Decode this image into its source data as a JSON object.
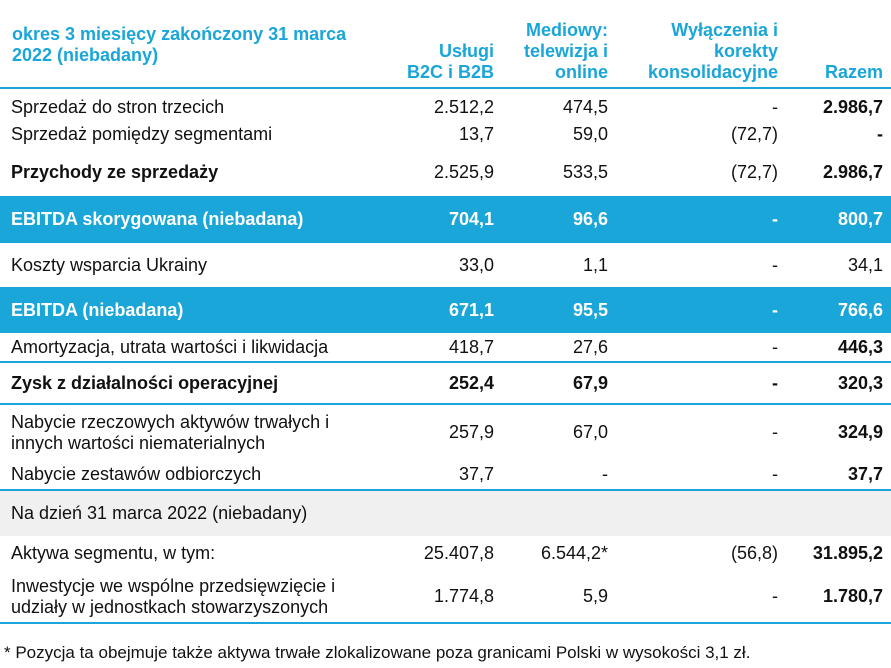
{
  "header": {
    "period": "okres 3 miesięcy zakończony 31 marca 2022 (niebadany)",
    "col1": "Usługi B2C i B2B",
    "col2": "Mediowy: telewizja i online",
    "col3": "Wyłączenia i korekty konsolidacyjne",
    "col4": "Razem"
  },
  "rows": [
    {
      "label": "Sprzedaż do stron trzecich",
      "v1": "2.512,2",
      "v2": "474,5",
      "v3": "-",
      "v4": "2.986,7"
    },
    {
      "label": "Sprzedaż pomiędzy segmentami",
      "v1": "13,7",
      "v2": "59,0",
      "v3": "(72,7)",
      "v4": "-"
    },
    {
      "label": "Przychody ze sprzedaży",
      "v1": "2.525,9",
      "v2": "533,5",
      "v3": "(72,7)",
      "v4": "2.986,7"
    },
    {
      "label": "EBITDA skorygowana (niebadana)",
      "v1": "704,1",
      "v2": "96,6",
      "v3": "-",
      "v4": "800,7"
    },
    {
      "label": "Koszty wsparcia Ukrainy",
      "v1": "33,0",
      "v2": "1,1",
      "v3": "-",
      "v4": "34,1"
    },
    {
      "label": "EBITDA (niebadana)",
      "v1": "671,1",
      "v2": "95,5",
      "v3": "-",
      "v4": "766,6"
    },
    {
      "label": "Amortyzacja, utrata wartości i likwidacja",
      "v1": "418,7",
      "v2": "27,6",
      "v3": "-",
      "v4": "446,3"
    },
    {
      "label": "Zysk z działalności operacyjnej",
      "v1": "252,4",
      "v2": "67,9",
      "v3": "-",
      "v4": "320,3"
    },
    {
      "label": "Nabycie rzeczowych aktywów trwałych i innych wartości niematerialnych",
      "v1": "257,9",
      "v2": "67,0",
      "v3": "-",
      "v4": "324,9"
    },
    {
      "label": "Nabycie zestawów odbiorczych",
      "v1": "37,7",
      "v2": "-",
      "v3": "-",
      "v4": "37,7"
    },
    {
      "label": "Aktywa segmentu, w tym:",
      "v1": "25.407,8",
      "v2": "6.544,2*",
      "v3": "(56,8)",
      "v4": "31.895,2"
    },
    {
      "label": "Inwestycje we wspólne przedsięwzięcie i udziały w jednostkach stowarzyszonych",
      "v1": "1.774,8",
      "v2": "5,9",
      "v3": "-",
      "v4": "1.780,7"
    }
  ],
  "section_note": "Na dzień 31 marca 2022 (niebadany)",
  "footnote": "* Pozycja ta obejmuje także aktywa trwałe zlokalizowane poza granicami Polski w wysokości 3,1 zł."
}
